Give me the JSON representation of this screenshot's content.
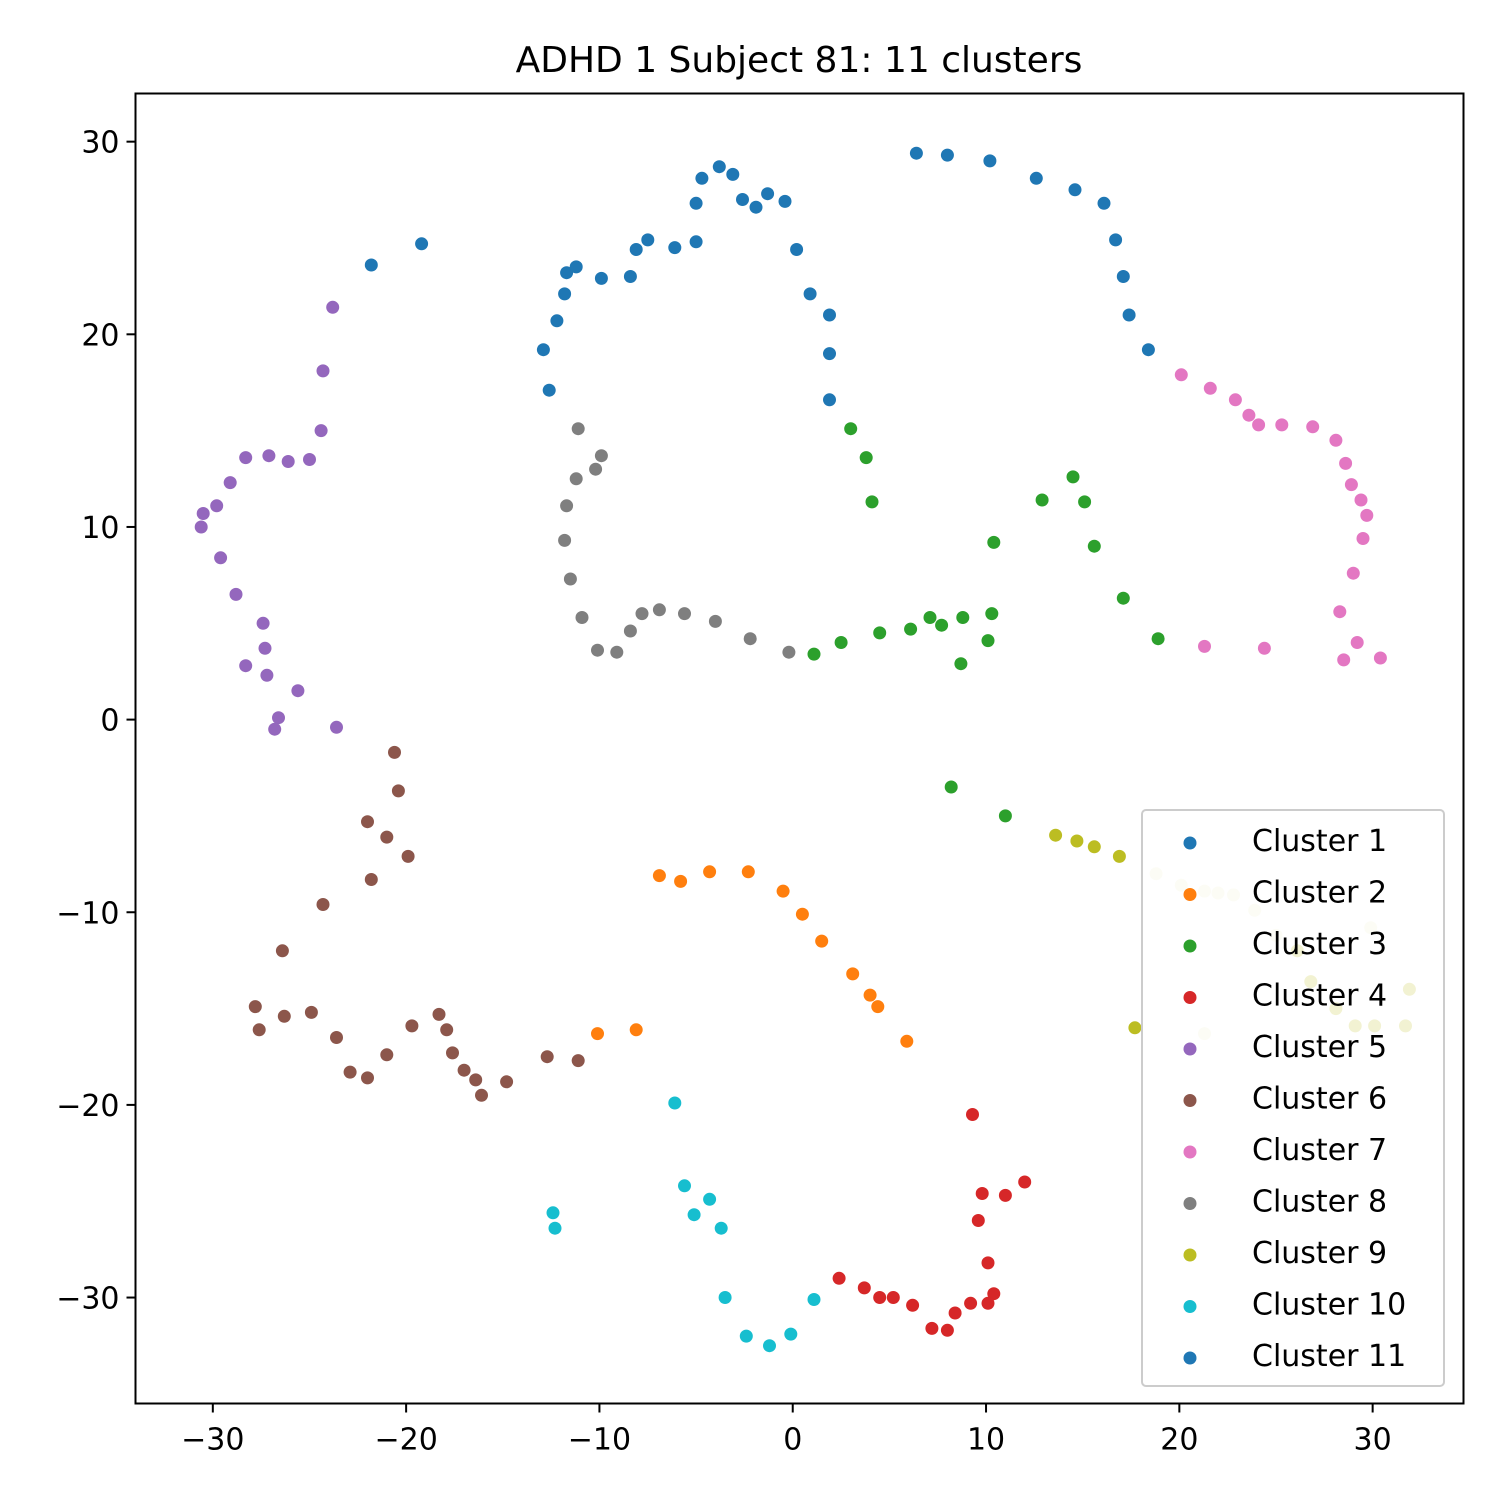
{
  "chart_data": {
    "type": "scatter",
    "title": "ADHD 1 Subject 81: 11 clusters",
    "xlabel": "",
    "ylabel": "",
    "xlim": [
      -34,
      34.7
    ],
    "ylim": [
      -35.5,
      32.5
    ],
    "xticks": [
      -30,
      -20,
      -10,
      0,
      10,
      20,
      30
    ],
    "yticks": [
      -30,
      -20,
      -10,
      0,
      10,
      20,
      30
    ],
    "xtick_labels": [
      "−30",
      "−20",
      "−10",
      "0",
      "10",
      "20",
      "30"
    ],
    "ytick_labels": [
      "−30",
      "−20",
      "−10",
      "0",
      "10",
      "20",
      "30"
    ],
    "grid": false,
    "legend_position": "lower-right",
    "series": [
      {
        "name": "Cluster 1",
        "color": "#1f77b4",
        "points": [
          [
            -21.8,
            23.6
          ],
          [
            -19.2,
            24.7
          ],
          [
            -12.9,
            19.2
          ],
          [
            -12.6,
            17.1
          ],
          [
            -12.2,
            20.7
          ],
          [
            -11.8,
            22.1
          ],
          [
            -11.7,
            23.2
          ],
          [
            -11.2,
            23.5
          ],
          [
            -9.9,
            22.9
          ],
          [
            -8.4,
            23.0
          ],
          [
            -8.1,
            24.4
          ],
          [
            -7.5,
            24.9
          ],
          [
            -6.1,
            24.5
          ],
          [
            -5.0,
            24.8
          ],
          [
            -5.0,
            26.8
          ],
          [
            -4.7,
            28.1
          ],
          [
            -3.8,
            28.7
          ],
          [
            -3.1,
            28.3
          ],
          [
            -2.6,
            27.0
          ],
          [
            -1.9,
            26.6
          ],
          [
            -1.3,
            27.3
          ],
          [
            -0.4,
            26.9
          ],
          [
            0.2,
            24.4
          ],
          [
            0.9,
            22.1
          ],
          [
            1.9,
            21.0
          ],
          [
            1.9,
            19.0
          ],
          [
            1.9,
            16.6
          ],
          [
            6.4,
            29.4
          ],
          [
            8.0,
            29.3
          ],
          [
            10.2,
            29.0
          ],
          [
            12.6,
            28.1
          ],
          [
            14.6,
            27.5
          ],
          [
            16.1,
            26.8
          ],
          [
            16.7,
            24.9
          ],
          [
            17.1,
            23.0
          ],
          [
            17.4,
            21.0
          ],
          [
            18.4,
            19.2
          ]
        ]
      },
      {
        "name": "Cluster 2",
        "color": "#ff7f0e",
        "points": [
          [
            -6.9,
            -8.1
          ],
          [
            -5.8,
            -8.4
          ],
          [
            -4.3,
            -7.9
          ],
          [
            -2.3,
            -7.9
          ],
          [
            -0.5,
            -8.9
          ],
          [
            0.5,
            -10.1
          ],
          [
            1.5,
            -11.5
          ],
          [
            3.1,
            -13.2
          ],
          [
            4.0,
            -14.3
          ],
          [
            4.4,
            -14.9
          ],
          [
            5.9,
            -16.7
          ],
          [
            -8.1,
            -16.1
          ],
          [
            -10.1,
            -16.3
          ]
        ]
      },
      {
        "name": "Cluster 3",
        "color": "#2ca02c",
        "points": [
          [
            3.0,
            15.1
          ],
          [
            3.8,
            13.6
          ],
          [
            4.1,
            11.3
          ],
          [
            1.1,
            3.4
          ],
          [
            2.5,
            4.0
          ],
          [
            4.5,
            4.5
          ],
          [
            6.1,
            4.7
          ],
          [
            7.1,
            5.3
          ],
          [
            7.7,
            4.9
          ],
          [
            8.8,
            5.3
          ],
          [
            8.7,
            2.9
          ],
          [
            10.1,
            4.1
          ],
          [
            10.3,
            5.5
          ],
          [
            10.4,
            9.2
          ],
          [
            12.9,
            11.4
          ],
          [
            14.5,
            12.6
          ],
          [
            15.1,
            11.3
          ],
          [
            15.6,
            9.0
          ],
          [
            17.1,
            6.3
          ],
          [
            18.9,
            4.2
          ],
          [
            8.2,
            -3.5
          ],
          [
            11.0,
            -5.0
          ]
        ]
      },
      {
        "name": "Cluster 4",
        "color": "#d62728",
        "points": [
          [
            9.3,
            -20.5
          ],
          [
            12.0,
            -24.0
          ],
          [
            9.8,
            -24.6
          ],
          [
            11.0,
            -24.7
          ],
          [
            9.6,
            -26.0
          ],
          [
            10.1,
            -28.2
          ],
          [
            10.4,
            -29.8
          ],
          [
            10.1,
            -30.3
          ],
          [
            9.2,
            -30.3
          ],
          [
            8.4,
            -30.8
          ],
          [
            8.0,
            -31.7
          ],
          [
            7.2,
            -31.6
          ],
          [
            6.2,
            -30.4
          ],
          [
            5.2,
            -30.0
          ],
          [
            4.5,
            -30.0
          ],
          [
            3.7,
            -29.5
          ],
          [
            2.4,
            -29.0
          ]
        ]
      },
      {
        "name": "Cluster 5",
        "color": "#9467bd",
        "points": [
          [
            -23.8,
            21.4
          ],
          [
            -24.3,
            18.1
          ],
          [
            -24.4,
            15.0
          ],
          [
            -25.0,
            13.5
          ],
          [
            -26.1,
            13.4
          ],
          [
            -27.1,
            13.7
          ],
          [
            -28.3,
            13.6
          ],
          [
            -29.1,
            12.3
          ],
          [
            -29.8,
            11.1
          ],
          [
            -30.5,
            10.7
          ],
          [
            -30.6,
            10.0
          ],
          [
            -29.6,
            8.4
          ],
          [
            -28.8,
            6.5
          ],
          [
            -27.4,
            5.0
          ],
          [
            -27.3,
            3.7
          ],
          [
            -27.2,
            2.3
          ],
          [
            -28.3,
            2.8
          ],
          [
            -25.6,
            1.5
          ],
          [
            -26.6,
            0.1
          ],
          [
            -26.8,
            -0.5
          ],
          [
            -23.6,
            -0.4
          ]
        ]
      },
      {
        "name": "Cluster 6",
        "color": "#8c564b",
        "points": [
          [
            -20.6,
            -1.7
          ],
          [
            -20.4,
            -3.7
          ],
          [
            -22.0,
            -5.3
          ],
          [
            -21.0,
            -6.1
          ],
          [
            -19.9,
            -7.1
          ],
          [
            -21.8,
            -8.3
          ],
          [
            -24.3,
            -9.6
          ],
          [
            -26.4,
            -12.0
          ],
          [
            -27.8,
            -14.9
          ],
          [
            -27.6,
            -16.1
          ],
          [
            -26.3,
            -15.4
          ],
          [
            -24.9,
            -15.2
          ],
          [
            -23.6,
            -16.5
          ],
          [
            -22.9,
            -18.3
          ],
          [
            -22.0,
            -18.6
          ],
          [
            -21.0,
            -17.4
          ],
          [
            -19.7,
            -15.9
          ],
          [
            -18.3,
            -15.3
          ],
          [
            -17.9,
            -16.1
          ],
          [
            -17.6,
            -17.3
          ],
          [
            -17.0,
            -18.2
          ],
          [
            -16.4,
            -18.7
          ],
          [
            -16.1,
            -19.5
          ],
          [
            -14.8,
            -18.8
          ],
          [
            -12.7,
            -17.5
          ],
          [
            -11.1,
            -17.7
          ]
        ]
      },
      {
        "name": "Cluster 7",
        "color": "#e377c2",
        "points": [
          [
            20.1,
            17.9
          ],
          [
            21.6,
            17.2
          ],
          [
            22.9,
            16.6
          ],
          [
            23.6,
            15.8
          ],
          [
            24.1,
            15.3
          ],
          [
            25.3,
            15.3
          ],
          [
            26.9,
            15.2
          ],
          [
            28.1,
            14.5
          ],
          [
            28.6,
            13.3
          ],
          [
            28.9,
            12.2
          ],
          [
            29.4,
            11.4
          ],
          [
            29.7,
            10.6
          ],
          [
            29.5,
            9.4
          ],
          [
            29.0,
            7.6
          ],
          [
            28.3,
            5.6
          ],
          [
            29.2,
            4.0
          ],
          [
            28.5,
            3.1
          ],
          [
            30.4,
            3.2
          ],
          [
            21.3,
            3.8
          ],
          [
            24.4,
            3.7
          ]
        ]
      },
      {
        "name": "Cluster 8",
        "color": "#7f7f7f",
        "points": [
          [
            -11.1,
            15.1
          ],
          [
            -9.9,
            13.7
          ],
          [
            -10.2,
            13.0
          ],
          [
            -11.2,
            12.5
          ],
          [
            -11.7,
            11.1
          ],
          [
            -11.8,
            9.3
          ],
          [
            -11.5,
            7.3
          ],
          [
            -10.9,
            5.3
          ],
          [
            -10.1,
            3.6
          ],
          [
            -9.1,
            3.5
          ],
          [
            -8.4,
            4.6
          ],
          [
            -7.8,
            5.5
          ],
          [
            -6.9,
            5.7
          ],
          [
            -5.6,
            5.5
          ],
          [
            -4.0,
            5.1
          ],
          [
            -2.2,
            4.2
          ],
          [
            -0.2,
            3.5
          ]
        ]
      },
      {
        "name": "Cluster 9",
        "color": "#bcbd22",
        "points": [
          [
            13.6,
            -6.0
          ],
          [
            14.7,
            -6.3
          ],
          [
            15.6,
            -6.6
          ],
          [
            16.9,
            -7.1
          ],
          [
            17.7,
            -16.0
          ],
          [
            26.1,
            -12.0
          ],
          [
            26.8,
            -13.6
          ],
          [
            28.1,
            -15.0
          ],
          [
            29.1,
            -15.9
          ],
          [
            30.1,
            -15.9
          ],
          [
            31.7,
            -15.9
          ],
          [
            31.9,
            -14.0
          ]
        ]
      },
      {
        "name": "Cluster 10",
        "color": "#17becf",
        "points": [
          [
            -6.1,
            -19.9
          ],
          [
            -5.6,
            -24.2
          ],
          [
            -4.3,
            -24.9
          ],
          [
            -5.1,
            -25.7
          ],
          [
            -3.7,
            -26.4
          ],
          [
            -12.4,
            -25.6
          ],
          [
            -12.3,
            -26.4
          ],
          [
            -3.5,
            -30.0
          ],
          [
            1.1,
            -30.1
          ],
          [
            -2.4,
            -32.0
          ],
          [
            -1.2,
            -32.5
          ],
          [
            -0.1,
            -31.9
          ]
        ]
      },
      {
        "name": "Cluster 11",
        "color": "#1f77b4",
        "points": []
      },
      {
        "name": "",
        "color": "#f0efcc",
        "points": [
          [
            18.8,
            -8.0
          ],
          [
            20.1,
            -8.6
          ],
          [
            21.3,
            -8.9
          ],
          [
            22.0,
            -9.0
          ],
          [
            22.8,
            -9.1
          ],
          [
            23.9,
            -9.9
          ],
          [
            25.0,
            -11.2
          ],
          [
            29.9,
            -10.8
          ],
          [
            21.3,
            -16.3
          ]
        ]
      }
    ]
  }
}
